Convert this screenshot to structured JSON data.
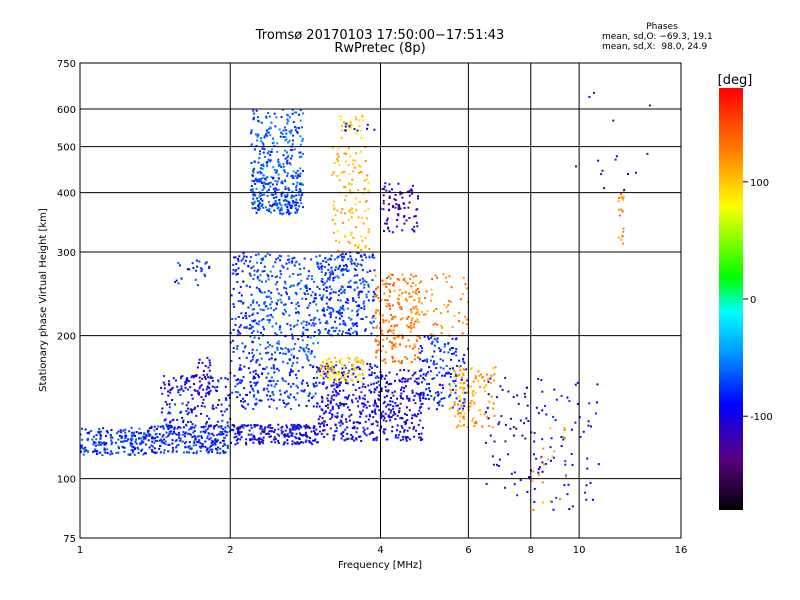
{
  "chart_data": {
    "type": "scatter",
    "title": "Tromsø 20170103 17:50:00−17:51:43",
    "subtitle": "RwPretec (8p)",
    "xlabel": "Frequency [MHz]",
    "ylabel": "Stationary phase Virtual Height [km]",
    "x_scale": "log",
    "y_scale": "log",
    "xlim": [
      1,
      16
    ],
    "ylim": [
      75,
      750
    ],
    "x_ticks": [
      1,
      2,
      4,
      6,
      8,
      10,
      16
    ],
    "y_ticks": [
      75,
      100,
      200,
      300,
      400,
      500,
      600,
      750
    ],
    "grid": true,
    "colorbar": {
      "label": "[deg]",
      "min": -180,
      "max": 180,
      "ticks": [
        100,
        0,
        -100
      ],
      "colormap": [
        "#000000",
        "#5a0080",
        "#0000ff",
        "#00a0ff",
        "#00ffff",
        "#00ff00",
        "#ffff00",
        "#ff8000",
        "#ff0000"
      ]
    },
    "legend": {
      "title": "Phases",
      "lines": [
        "mean, sd,O: −69.3, 19.1",
        "mean, sd,X:  98.0, 24.9"
      ]
    },
    "clusters": [
      {
        "f": [
          1.0,
          1.35
        ],
        "h": [
          112,
          128
        ],
        "phase": -75,
        "n": 180
      },
      {
        "f": [
          1.35,
          2.0
        ],
        "h": [
          113,
          130
        ],
        "phase": -80,
        "n": 260
      },
      {
        "f": [
          1.45,
          2.0
        ],
        "h": [
          128,
          165
        ],
        "phase": -90,
        "n": 160
      },
      {
        "f": [
          1.6,
          1.85
        ],
        "h": [
          150,
          180
        ],
        "phase": -110,
        "n": 40
      },
      {
        "f": [
          1.55,
          1.85
        ],
        "h": [
          255,
          290
        ],
        "phase": -80,
        "n": 25
      },
      {
        "f": [
          2.0,
          3.0
        ],
        "h": [
          118,
          130
        ],
        "phase": -95,
        "n": 220
      },
      {
        "f": [
          2.0,
          2.2
        ],
        "h": [
          140,
          300
        ],
        "phase": -85,
        "n": 120
      },
      {
        "f": [
          2.2,
          2.8
        ],
        "h": [
          360,
          430
        ],
        "phase": -70,
        "n": 220
      },
      {
        "f": [
          2.2,
          2.8
        ],
        "h": [
          430,
          600
        ],
        "phase": -65,
        "n": 200
      },
      {
        "f": [
          2.2,
          3.0
        ],
        "h": [
          180,
          300
        ],
        "phase": -70,
        "n": 320
      },
      {
        "f": [
          2.2,
          3.0
        ],
        "h": [
          140,
          180
        ],
        "phase": -80,
        "n": 160
      },
      {
        "f": [
          3.0,
          4.0
        ],
        "h": [
          120,
          175
        ],
        "phase": -95,
        "n": 320
      },
      {
        "f": [
          3.0,
          3.9
        ],
        "h": [
          200,
          300
        ],
        "phase": -75,
        "n": 300
      },
      {
        "f": [
          3.0,
          3.7
        ],
        "h": [
          160,
          180
        ],
        "phase": 95,
        "n": 90
      },
      {
        "f": [
          3.2,
          3.8
        ],
        "h": [
          300,
          500
        ],
        "phase": 105,
        "n": 120
      },
      {
        "f": [
          3.3,
          3.7
        ],
        "h": [
          520,
          580
        ],
        "phase": 92,
        "n": 25
      },
      {
        "f": [
          3.4,
          3.9
        ],
        "h": [
          540,
          560
        ],
        "phase": -110,
        "n": 10
      },
      {
        "f": [
          3.9,
          4.8
        ],
        "h": [
          175,
          270
        ],
        "phase": 130,
        "n": 220
      },
      {
        "f": [
          4.0,
          4.9
        ],
        "h": [
          120,
          170
        ],
        "phase": -100,
        "n": 200
      },
      {
        "f": [
          4.0,
          4.8
        ],
        "h": [
          330,
          420
        ],
        "phase": -120,
        "n": 80
      },
      {
        "f": [
          4.8,
          6.0
        ],
        "h": [
          140,
          200
        ],
        "phase": -80,
        "n": 150
      },
      {
        "f": [
          4.7,
          6.0
        ],
        "h": [
          200,
          270
        ],
        "phase": 120,
        "n": 60
      },
      {
        "f": [
          5.5,
          6.8
        ],
        "h": [
          128,
          172
        ],
        "phase": 115,
        "n": 120
      },
      {
        "f": [
          6.5,
          8.5
        ],
        "h": [
          95,
          165
        ],
        "phase": -120,
        "n": 60
      },
      {
        "f": [
          7.5,
          11.0
        ],
        "h": [
          85,
          165
        ],
        "phase": -90,
        "n": 70
      },
      {
        "f": [
          8.0,
          9.5
        ],
        "h": [
          85,
          130
        ],
        "phase": 120,
        "n": 20
      },
      {
        "f": [
          12.0,
          12.3
        ],
        "h": [
          300,
          420
        ],
        "phase": 125,
        "n": 18
      },
      {
        "f": [
          9.5,
          14.0
        ],
        "h": [
          400,
          650
        ],
        "phase": -120,
        "n": 15
      }
    ]
  }
}
